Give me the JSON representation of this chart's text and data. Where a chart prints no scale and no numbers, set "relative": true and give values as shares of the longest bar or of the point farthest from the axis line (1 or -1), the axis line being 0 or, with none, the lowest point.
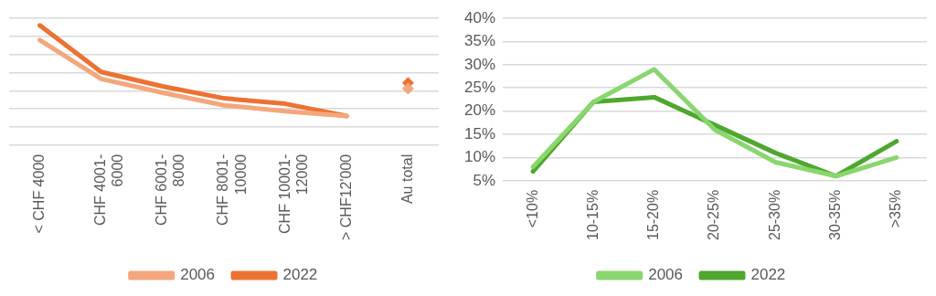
{
  "chart_data": [
    {
      "type": "line",
      "relative": true,
      "grid": "y",
      "legend": "bottom",
      "categories": [
        "< CHF 4000",
        "CHF 4001-6000",
        "CHF 6001-8000",
        "CHF 8001-10000",
        "CHF 10001-12000",
        "> CHF12'000",
        "Au total"
      ],
      "series": [
        {
          "name": "2006",
          "color": "#f4a77c",
          "values": [
            0.877,
            0.553,
            0.438,
            0.333,
            0.282,
            0.243,
            null
          ]
        },
        {
          "name": "2022",
          "color": "#ec7232",
          "values": [
            1,
            0.611,
            0.491,
            0.391,
            0.345,
            0.243,
            null
          ]
        },
        {
          "type": "scatter",
          "marker": "diamond",
          "color": "#f4a77c",
          "x": [
            "Au total"
          ],
          "values": [
            0.472
          ]
        },
        {
          "type": "scatter",
          "marker": "diamond",
          "color": "#ec7232",
          "x": [
            "Au total"
          ],
          "values": [
            0.519
          ]
        }
      ]
    },
    {
      "type": "line",
      "grid": "y",
      "legend": "bottom",
      "categories": [
        "<10%",
        "10-15%",
        "15-20%",
        "20-25%",
        "25-30%",
        "30-35%",
        ">35%"
      ],
      "ylim": [
        5,
        40
      ],
      "yticks": [
        {
          "value": 5,
          "label": "5%"
        },
        {
          "value": 10,
          "label": "10%"
        },
        {
          "value": 15,
          "label": "15%"
        },
        {
          "value": 20,
          "label": "20%"
        },
        {
          "value": 25,
          "label": "25%"
        },
        {
          "value": 30,
          "label": "30%"
        },
        {
          "value": 35,
          "label": "35%"
        },
        {
          "value": 40,
          "label": "40%"
        }
      ],
      "series": [
        {
          "name": "2006",
          "color": "#8ad66e",
          "values": [
            8,
            22,
            29,
            16,
            9,
            6,
            10
          ]
        },
        {
          "name": "2022",
          "color": "#4ea72e",
          "values": [
            7,
            22,
            23,
            17,
            11,
            6,
            13.5
          ]
        }
      ]
    }
  ]
}
